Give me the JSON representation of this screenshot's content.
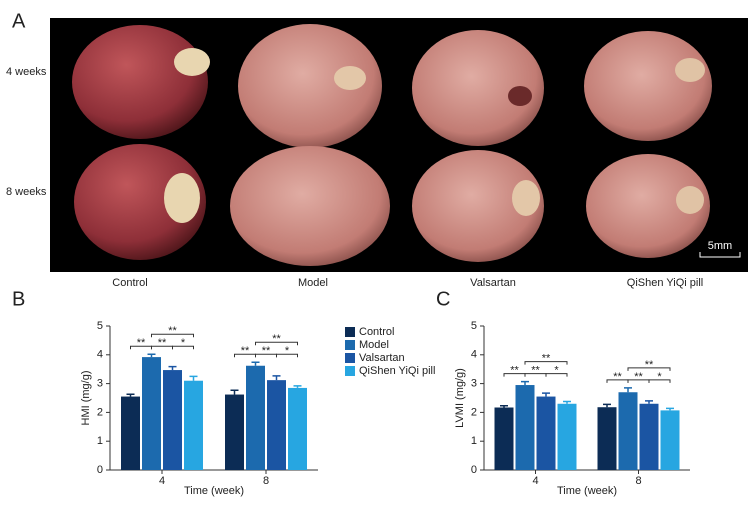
{
  "photo_panel": {
    "panel": "A",
    "rows": [
      "4 weeks",
      "8 weeks"
    ],
    "columns": [
      "Control",
      "Model",
      "Valsartan",
      "QiShen YiQi pill"
    ],
    "scale_bar": "5mm"
  },
  "chart_data": [
    {
      "type": "bar",
      "panel": "B",
      "ylabel": "HMI (mg/g)",
      "xlabel": "Time (week)",
      "categories": [
        "4",
        "8"
      ],
      "ylim": [
        0,
        5
      ],
      "yticks": [
        0,
        1,
        2,
        3,
        4,
        5
      ],
      "legend": true,
      "legend_position": "right",
      "series": [
        {
          "name": "Control",
          "color": "#0c2c55",
          "values": [
            2.55,
            2.62
          ],
          "errors": [
            0.08,
            0.15
          ]
        },
        {
          "name": "Model",
          "color": "#1c6aae",
          "values": [
            3.92,
            3.62
          ],
          "errors": [
            0.1,
            0.12
          ]
        },
        {
          "name": "Valsartan",
          "color": "#1b55a3",
          "values": [
            3.47,
            3.12
          ],
          "errors": [
            0.12,
            0.15
          ]
        },
        {
          "name": "QiShen YiQi pill",
          "color": "#27a6e1",
          "values": [
            3.1,
            2.85
          ],
          "errors": [
            0.15,
            0.07
          ]
        }
      ],
      "brackets": [
        {
          "category": 0,
          "pair": [
            0,
            1
          ],
          "label": "**"
        },
        {
          "category": 0,
          "pair": [
            1,
            2
          ],
          "label": "**"
        },
        {
          "category": 0,
          "pair": [
            2,
            3
          ],
          "label": "*"
        },
        {
          "category": 0,
          "pair": [
            1,
            3
          ],
          "label": "**"
        },
        {
          "category": 1,
          "pair": [
            0,
            1
          ],
          "label": "**"
        },
        {
          "category": 1,
          "pair": [
            1,
            2
          ],
          "label": "**"
        },
        {
          "category": 1,
          "pair": [
            2,
            3
          ],
          "label": "*"
        },
        {
          "category": 1,
          "pair": [
            1,
            3
          ],
          "label": "**"
        }
      ]
    },
    {
      "type": "bar",
      "panel": "C",
      "ylabel": "LVMI (mg/g)",
      "xlabel": "Time (week)",
      "categories": [
        "4",
        "8"
      ],
      "ylim": [
        0,
        5
      ],
      "yticks": [
        0,
        1,
        2,
        3,
        4,
        5
      ],
      "legend": false,
      "series": [
        {
          "name": "Control",
          "color": "#0c2c55",
          "values": [
            2.17,
            2.18
          ],
          "errors": [
            0.06,
            0.1
          ]
        },
        {
          "name": "Model",
          "color": "#1c6aae",
          "values": [
            2.95,
            2.7
          ],
          "errors": [
            0.12,
            0.15
          ]
        },
        {
          "name": "Valsartan",
          "color": "#1b55a3",
          "values": [
            2.55,
            2.3
          ],
          "errors": [
            0.12,
            0.1
          ]
        },
        {
          "name": "QiShen YiQi pill",
          "color": "#27a6e1",
          "values": [
            2.3,
            2.07
          ],
          "errors": [
            0.08,
            0.07
          ]
        }
      ],
      "brackets": [
        {
          "category": 0,
          "pair": [
            0,
            1
          ],
          "label": "**"
        },
        {
          "category": 0,
          "pair": [
            1,
            2
          ],
          "label": "**"
        },
        {
          "category": 0,
          "pair": [
            2,
            3
          ],
          "label": "*"
        },
        {
          "category": 0,
          "pair": [
            1,
            3
          ],
          "label": "**"
        },
        {
          "category": 1,
          "pair": [
            0,
            1
          ],
          "label": "**"
        },
        {
          "category": 1,
          "pair": [
            1,
            2
          ],
          "label": "**"
        },
        {
          "category": 1,
          "pair": [
            2,
            3
          ],
          "label": "*"
        },
        {
          "category": 1,
          "pair": [
            1,
            3
          ],
          "label": "**"
        }
      ]
    }
  ]
}
